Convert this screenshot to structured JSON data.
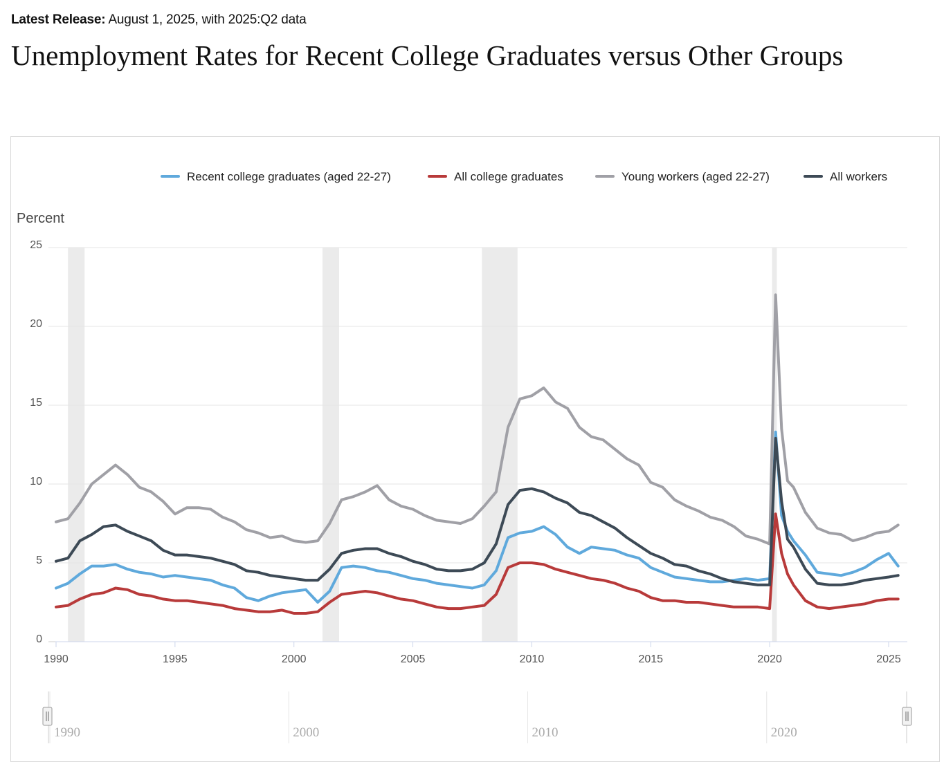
{
  "header": {
    "release_label": "Latest Release:",
    "release_text": "August 1, 2025, with 2025:Q2 data",
    "title": "Unemployment Rates for Recent College Graduates versus Other Groups"
  },
  "colors": {
    "recent_grads": "#5fa9dc",
    "all_grads": "#b83a3a",
    "young_workers": "#a0a0a6",
    "all_workers": "#3d4a56",
    "recession": "#ebebeb",
    "grid": "#e6e6e6"
  },
  "chart_data": {
    "type": "line",
    "ylabel": "Percent",
    "ylim": [
      0,
      25
    ],
    "yticks": [
      0,
      5,
      10,
      15,
      20,
      25
    ],
    "xlim": [
      1990,
      2025.8
    ],
    "xticks": [
      1990,
      1995,
      2000,
      2005,
      2010,
      2015,
      2020,
      2025
    ],
    "grid": true,
    "legend_position": "top",
    "recessions": [
      [
        1990.5,
        1991.2
      ],
      [
        2001.2,
        2001.9
      ],
      [
        2007.9,
        2009.4
      ],
      [
        2020.1,
        2020.3
      ]
    ],
    "navigator_ticks": [
      1990,
      2000,
      2010,
      2020
    ],
    "series": [
      {
        "name": "Recent college graduates (aged 22-27)",
        "key": "recent_grads",
        "x": [
          1990,
          1990.5,
          1991,
          1991.5,
          1992,
          1992.5,
          1993,
          1993.5,
          1994,
          1994.5,
          1995,
          1995.5,
          1996,
          1996.5,
          1997,
          1997.5,
          1998,
          1998.5,
          1999,
          1999.5,
          2000,
          2000.5,
          2001,
          2001.5,
          2002,
          2002.5,
          2003,
          2003.5,
          2004,
          2004.5,
          2005,
          2005.5,
          2006,
          2006.5,
          2007,
          2007.5,
          2008,
          2008.5,
          2009,
          2009.5,
          2010,
          2010.5,
          2011,
          2011.5,
          2012,
          2012.5,
          2013,
          2013.5,
          2014,
          2014.5,
          2015,
          2015.5,
          2016,
          2016.5,
          2017,
          2017.5,
          2018,
          2018.5,
          2019,
          2019.5,
          2020,
          2020.25,
          2020.5,
          2020.75,
          2021,
          2021.5,
          2022,
          2022.5,
          2023,
          2023.5,
          2024,
          2024.5,
          2025,
          2025.4
        ],
        "values": [
          3.4,
          3.7,
          4.3,
          4.8,
          4.8,
          4.9,
          4.6,
          4.4,
          4.3,
          4.1,
          4.2,
          4.1,
          4.0,
          3.9,
          3.6,
          3.4,
          2.8,
          2.6,
          2.9,
          3.1,
          3.2,
          3.3,
          2.5,
          3.2,
          4.7,
          4.8,
          4.7,
          4.5,
          4.4,
          4.2,
          4.0,
          3.9,
          3.7,
          3.6,
          3.5,
          3.4,
          3.6,
          4.5,
          6.6,
          6.9,
          7.0,
          7.3,
          6.8,
          6.0,
          5.6,
          6.0,
          5.9,
          5.8,
          5.5,
          5.3,
          4.7,
          4.4,
          4.1,
          4.0,
          3.9,
          3.8,
          3.8,
          3.9,
          4.0,
          3.9,
          4.0,
          13.3,
          8.0,
          7.0,
          6.4,
          5.5,
          4.4,
          4.3,
          4.2,
          4.4,
          4.7,
          5.2,
          5.6,
          4.8
        ]
      },
      {
        "name": "All college graduates",
        "key": "all_grads",
        "x": [
          1990,
          1990.5,
          1991,
          1991.5,
          1992,
          1992.5,
          1993,
          1993.5,
          1994,
          1994.5,
          1995,
          1995.5,
          1996,
          1996.5,
          1997,
          1997.5,
          1998,
          1998.5,
          1999,
          1999.5,
          2000,
          2000.5,
          2001,
          2001.5,
          2002,
          2002.5,
          2003,
          2003.5,
          2004,
          2004.5,
          2005,
          2005.5,
          2006,
          2006.5,
          2007,
          2007.5,
          2008,
          2008.5,
          2009,
          2009.5,
          2010,
          2010.5,
          2011,
          2011.5,
          2012,
          2012.5,
          2013,
          2013.5,
          2014,
          2014.5,
          2015,
          2015.5,
          2016,
          2016.5,
          2017,
          2017.5,
          2018,
          2018.5,
          2019,
          2019.5,
          2020,
          2020.25,
          2020.5,
          2020.75,
          2021,
          2021.5,
          2022,
          2022.5,
          2023,
          2023.5,
          2024,
          2024.5,
          2025,
          2025.4
        ],
        "values": [
          2.2,
          2.3,
          2.7,
          3.0,
          3.1,
          3.4,
          3.3,
          3.0,
          2.9,
          2.7,
          2.6,
          2.6,
          2.5,
          2.4,
          2.3,
          2.1,
          2.0,
          1.9,
          1.9,
          2.0,
          1.8,
          1.8,
          1.9,
          2.5,
          3.0,
          3.1,
          3.2,
          3.1,
          2.9,
          2.7,
          2.6,
          2.4,
          2.2,
          2.1,
          2.1,
          2.2,
          2.3,
          3.0,
          4.7,
          5.0,
          5.0,
          4.9,
          4.6,
          4.4,
          4.2,
          4.0,
          3.9,
          3.7,
          3.4,
          3.2,
          2.8,
          2.6,
          2.6,
          2.5,
          2.5,
          2.4,
          2.3,
          2.2,
          2.2,
          2.2,
          2.1,
          8.1,
          5.6,
          4.3,
          3.6,
          2.6,
          2.2,
          2.1,
          2.2,
          2.3,
          2.4,
          2.6,
          2.7,
          2.7
        ]
      },
      {
        "name": "Young workers (aged 22-27)",
        "key": "young_workers",
        "x": [
          1990,
          1990.5,
          1991,
          1991.5,
          1992,
          1992.5,
          1993,
          1993.5,
          1994,
          1994.5,
          1995,
          1995.5,
          1996,
          1996.5,
          1997,
          1997.5,
          1998,
          1998.5,
          1999,
          1999.5,
          2000,
          2000.5,
          2001,
          2001.5,
          2002,
          2002.5,
          2003,
          2003.5,
          2004,
          2004.5,
          2005,
          2005.5,
          2006,
          2006.5,
          2007,
          2007.5,
          2008,
          2008.5,
          2009,
          2009.5,
          2010,
          2010.5,
          2011,
          2011.5,
          2012,
          2012.5,
          2013,
          2013.5,
          2014,
          2014.5,
          2015,
          2015.5,
          2016,
          2016.5,
          2017,
          2017.5,
          2018,
          2018.5,
          2019,
          2019.5,
          2020,
          2020.25,
          2020.5,
          2020.75,
          2021,
          2021.5,
          2022,
          2022.5,
          2023,
          2023.5,
          2024,
          2024.5,
          2025,
          2025.4
        ],
        "values": [
          7.6,
          7.8,
          8.8,
          10.0,
          10.6,
          11.2,
          10.6,
          9.8,
          9.5,
          8.9,
          8.1,
          8.5,
          8.5,
          8.4,
          7.9,
          7.6,
          7.1,
          6.9,
          6.6,
          6.7,
          6.4,
          6.3,
          6.4,
          7.5,
          9.0,
          9.2,
          9.5,
          9.9,
          9.0,
          8.6,
          8.4,
          8.0,
          7.7,
          7.6,
          7.5,
          7.8,
          8.6,
          9.5,
          13.6,
          15.4,
          15.6,
          16.1,
          15.2,
          14.8,
          13.6,
          13.0,
          12.8,
          12.2,
          11.6,
          11.2,
          10.1,
          9.8,
          9.0,
          8.6,
          8.3,
          7.9,
          7.7,
          7.3,
          6.7,
          6.5,
          6.2,
          22.0,
          13.5,
          10.2,
          9.8,
          8.2,
          7.2,
          6.9,
          6.8,
          6.4,
          6.6,
          6.9,
          7.0,
          7.4
        ]
      },
      {
        "name": "All workers",
        "key": "all_workers",
        "x": [
          1990,
          1990.5,
          1991,
          1991.5,
          1992,
          1992.5,
          1993,
          1993.5,
          1994,
          1994.5,
          1995,
          1995.5,
          1996,
          1996.5,
          1997,
          1997.5,
          1998,
          1998.5,
          1999,
          1999.5,
          2000,
          2000.5,
          2001,
          2001.5,
          2002,
          2002.5,
          2003,
          2003.5,
          2004,
          2004.5,
          2005,
          2005.5,
          2006,
          2006.5,
          2007,
          2007.5,
          2008,
          2008.5,
          2009,
          2009.5,
          2010,
          2010.5,
          2011,
          2011.5,
          2012,
          2012.5,
          2013,
          2013.5,
          2014,
          2014.5,
          2015,
          2015.5,
          2016,
          2016.5,
          2017,
          2017.5,
          2018,
          2018.5,
          2019,
          2019.5,
          2020,
          2020.25,
          2020.5,
          2020.75,
          2021,
          2021.5,
          2022,
          2022.5,
          2023,
          2023.5,
          2024,
          2024.5,
          2025,
          2025.4
        ],
        "values": [
          5.1,
          5.3,
          6.4,
          6.8,
          7.3,
          7.4,
          7.0,
          6.7,
          6.4,
          5.8,
          5.5,
          5.5,
          5.4,
          5.3,
          5.1,
          4.9,
          4.5,
          4.4,
          4.2,
          4.1,
          4.0,
          3.9,
          3.9,
          4.6,
          5.6,
          5.8,
          5.9,
          5.9,
          5.6,
          5.4,
          5.1,
          4.9,
          4.6,
          4.5,
          4.5,
          4.6,
          5.0,
          6.2,
          8.7,
          9.6,
          9.7,
          9.5,
          9.1,
          8.8,
          8.2,
          8.0,
          7.6,
          7.2,
          6.6,
          6.1,
          5.6,
          5.3,
          4.9,
          4.8,
          4.5,
          4.3,
          4.0,
          3.8,
          3.7,
          3.6,
          3.6,
          12.9,
          8.9,
          6.5,
          6.0,
          4.6,
          3.7,
          3.6,
          3.6,
          3.7,
          3.9,
          4.0,
          4.1,
          4.2
        ]
      }
    ]
  }
}
